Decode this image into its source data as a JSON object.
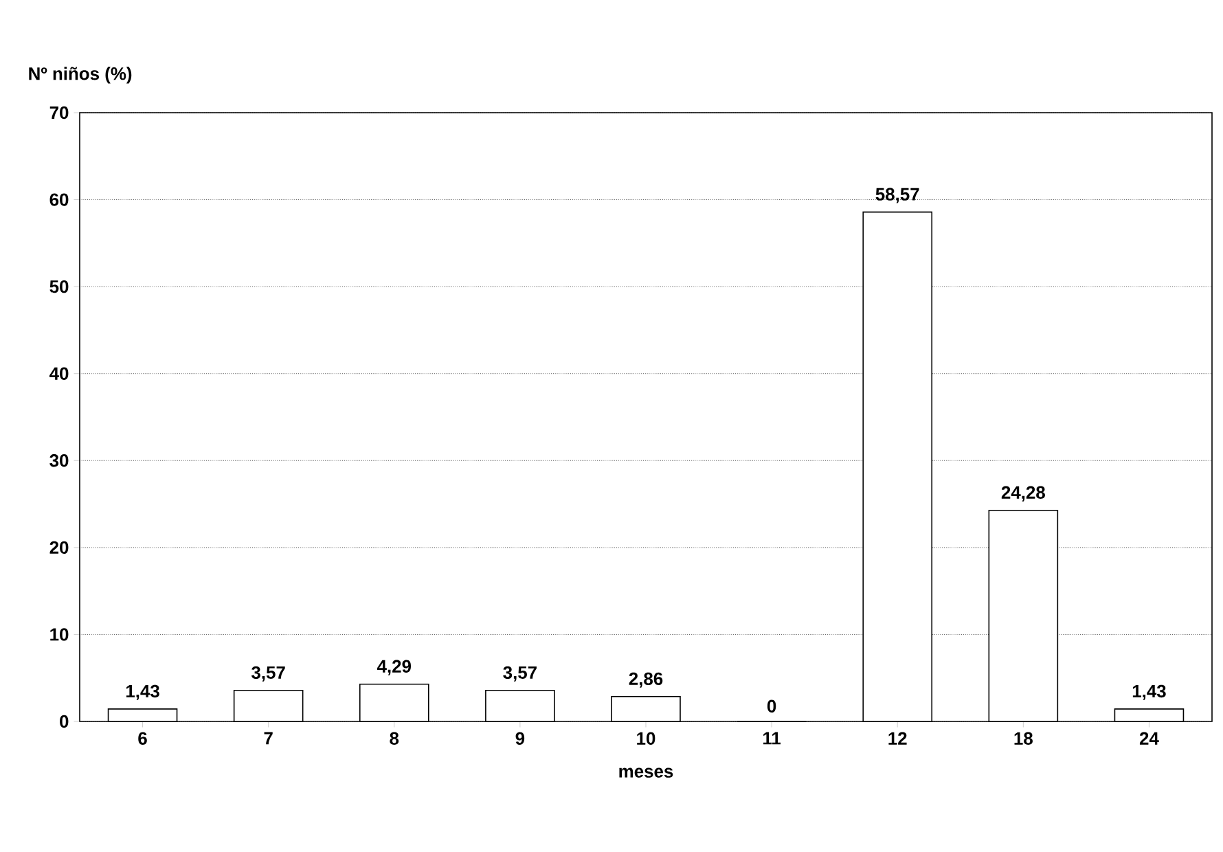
{
  "chart_data": {
    "type": "bar",
    "xlabel": "meses",
    "ylabel": "Nº niños (%)",
    "categories": [
      "6",
      "7",
      "8",
      "9",
      "10",
      "11",
      "12",
      "18",
      "24"
    ],
    "values": [
      1.43,
      3.57,
      4.29,
      3.57,
      2.86,
      0,
      58.57,
      24.28,
      1.43
    ],
    "value_labels": [
      "1,43",
      "3,57",
      "4,29",
      "3,57",
      "2,86",
      "0",
      "58,57",
      "24,28",
      "1,43"
    ],
    "color": "#000000",
    "ylim": [
      0,
      70
    ],
    "yticks": [
      0,
      10,
      20,
      30,
      40,
      50,
      60,
      70
    ],
    "grid": "y"
  }
}
